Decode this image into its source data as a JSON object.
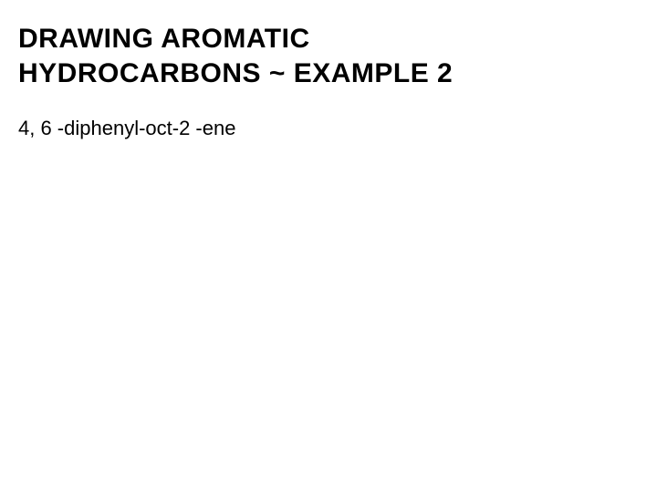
{
  "slide": {
    "title_line1": "DRAWING AROMATIC",
    "title_line2": "HYDROCARBONS ~ EXAMPLE 2",
    "compound_name": "4, 6 -diphenyl-oct-2 -ene",
    "background_color": "#ffffff",
    "title_color": "#000000",
    "body_color": "#000000",
    "title_fontsize": 30,
    "body_fontsize": 22,
    "title_fontweight": "bold",
    "body_fontweight": "normal"
  }
}
